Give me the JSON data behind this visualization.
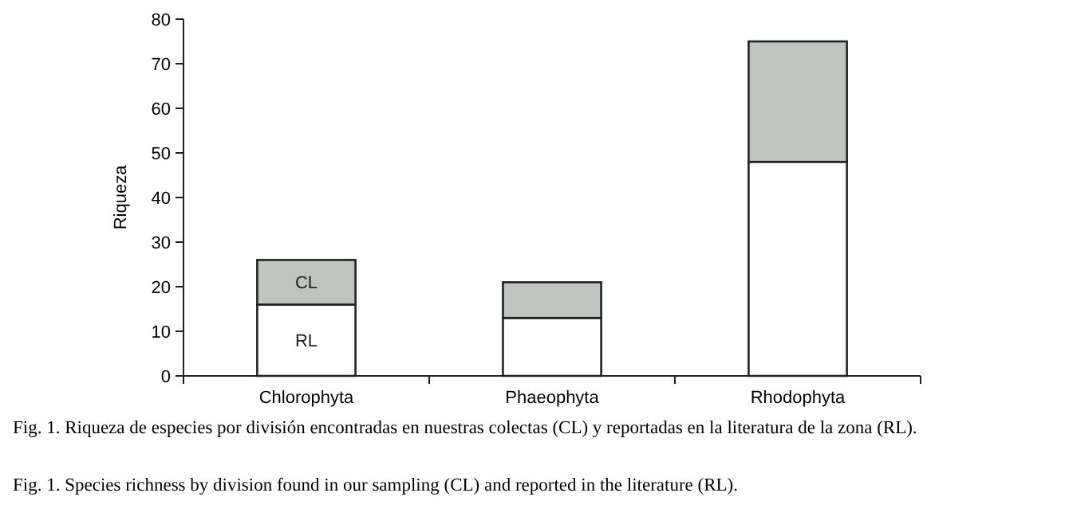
{
  "chart_data": {
    "type": "bar",
    "stacked": true,
    "ylabel": "Riqueza",
    "categories": [
      "Chlorophyta",
      "Phaeophyta",
      "Rhodophyta"
    ],
    "series": [
      {
        "name": "RL",
        "color": "#ffffff",
        "values": [
          16,
          13,
          48
        ]
      },
      {
        "name": "CL",
        "color": "#c0c4c0",
        "values": [
          10,
          8,
          27
        ]
      }
    ],
    "ylim": [
      0,
      80
    ],
    "yticks": [
      0,
      10,
      20,
      30,
      40,
      50,
      60,
      70,
      80
    ],
    "grid": false,
    "legend": false,
    "annotations": [
      "Fig. 1. Riqueza de especies por división encontradas en nuestras colectas (CL) y reportadas en la literatura de la zona (RL).",
      "Fig. 1. Species richness by division found in our sampling (CL) and reported in the literature (RL)."
    ]
  }
}
